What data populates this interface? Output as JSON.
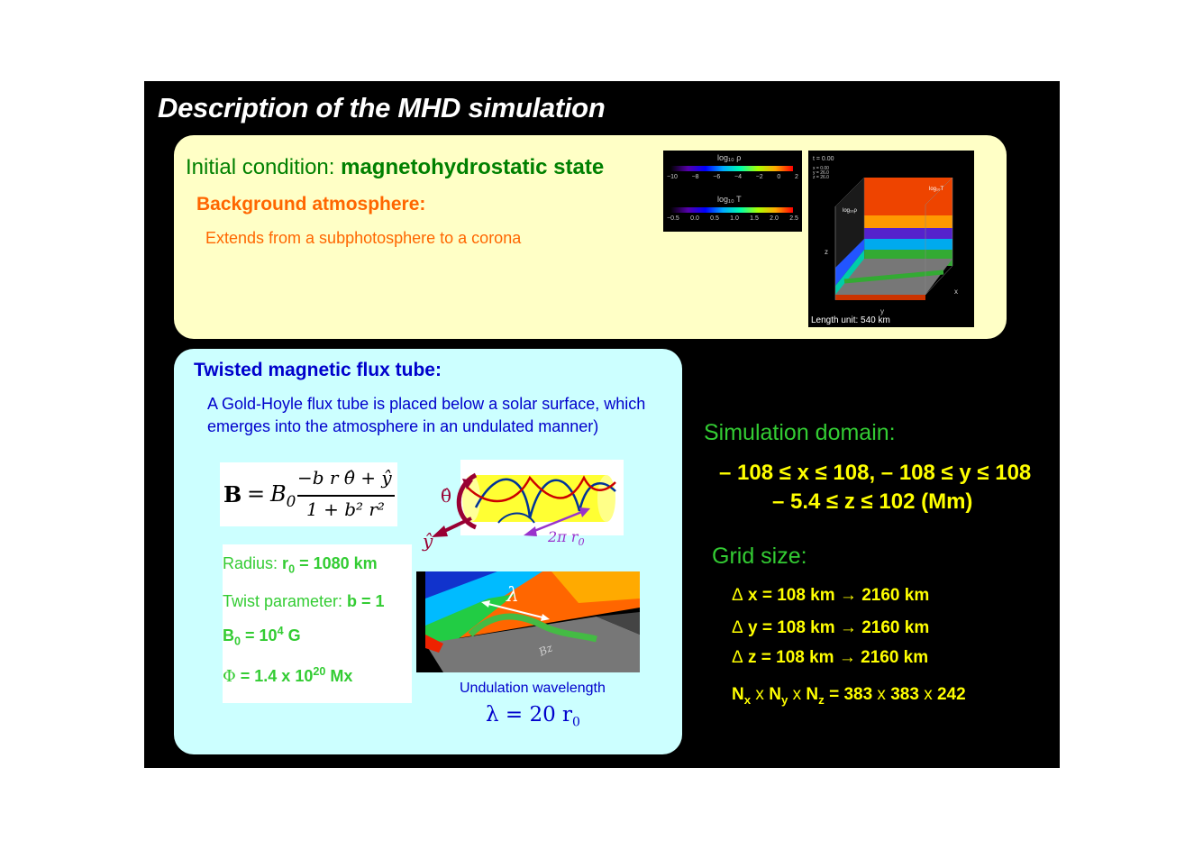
{
  "title": "Description of the MHD simulation",
  "initial": {
    "label": "Initial condition: ",
    "value": "magnetohydrostatic state",
    "background_heading": "Background atmosphere:",
    "background_text": "Extends from a subphotosphere to a corona"
  },
  "colorbars": {
    "rho_label": "log₁₀ ρ",
    "rho_ticks": [
      "−10",
      "−8",
      "−6",
      "−4",
      "−2",
      "0",
      "2"
    ],
    "t_label": "log₁₀ T",
    "t_ticks": [
      "−0.5",
      "0.0",
      "0.5",
      "1.0",
      "1.5",
      "2.0",
      "2.5"
    ]
  },
  "cube_figure": {
    "time": "t = 0.00",
    "coords": [
      "x = 0.00",
      "y = 26.0",
      "z = 26.0"
    ],
    "label_T": "log₁₀T",
    "label_rho": "log₁₀ρ",
    "axis_x": "x",
    "axis_y": "y",
    "axis_z": "z",
    "length_unit": "Length unit: 540 km"
  },
  "fluxtube": {
    "heading": "Twisted magnetic flux tube:",
    "text_line1": "A Gold-Hoyle flux tube is placed below a solar surface, which",
    "text_line2": "emerges into the atmosphere in an undulated manner)",
    "eq_B": "B",
    "eq_B0": "B",
    "eq_B0_sub": "0",
    "eq_numerator": "−b r θ̂ + ŷ",
    "eq_denominator": "1 + b² r²",
    "theta_hat": "θ̂",
    "y_hat": "ŷ",
    "two_pi_r0": "2π r",
    "two_pi_r0_sub": "0",
    "radius_label": "Radius: ",
    "radius_r": "r",
    "radius_sub": "0",
    "radius_value": " = 1080 km",
    "twist_label": "Twist parameter: ",
    "twist_value": "b = 1",
    "b0": "B",
    "b0_sub": "0",
    "b0_eq": " = 10",
    "b0_sup": "4",
    "b0_unit": " G",
    "phi": "Φ",
    "phi_eq": " = 1.4 x 10",
    "phi_sup": "20",
    "phi_unit": " Mx",
    "lambda_symbol": "λ",
    "bz_label": "Bz",
    "undulation_label": "Undulation wavelength",
    "lambda_eq": "λ = 20 r",
    "lambda_sub": "0"
  },
  "domain": {
    "heading": "Simulation domain:",
    "line1": "– 108 ≤ x ≤ 108, – 108 ≤ y ≤ 108",
    "line2": "– 5.4 ≤ z ≤ 102 (Mm)"
  },
  "grid": {
    "heading": "Grid size:",
    "dx": "x = 108 km → 2160 km",
    "dy": "y = 108 km → 2160 km",
    "dz": "z = 108 km → 2160 km",
    "delta": "Δ",
    "n_x": "N",
    "n_x_sub": "x",
    "times1": " x ",
    "n_y": "N",
    "n_y_sub": "y",
    "times2": " x ",
    "n_z": "N",
    "n_z_sub": "z",
    "n_eq": " = 383",
    "times3": " x ",
    "n_v2": "383",
    "times4": " x ",
    "n_v3": "242"
  }
}
